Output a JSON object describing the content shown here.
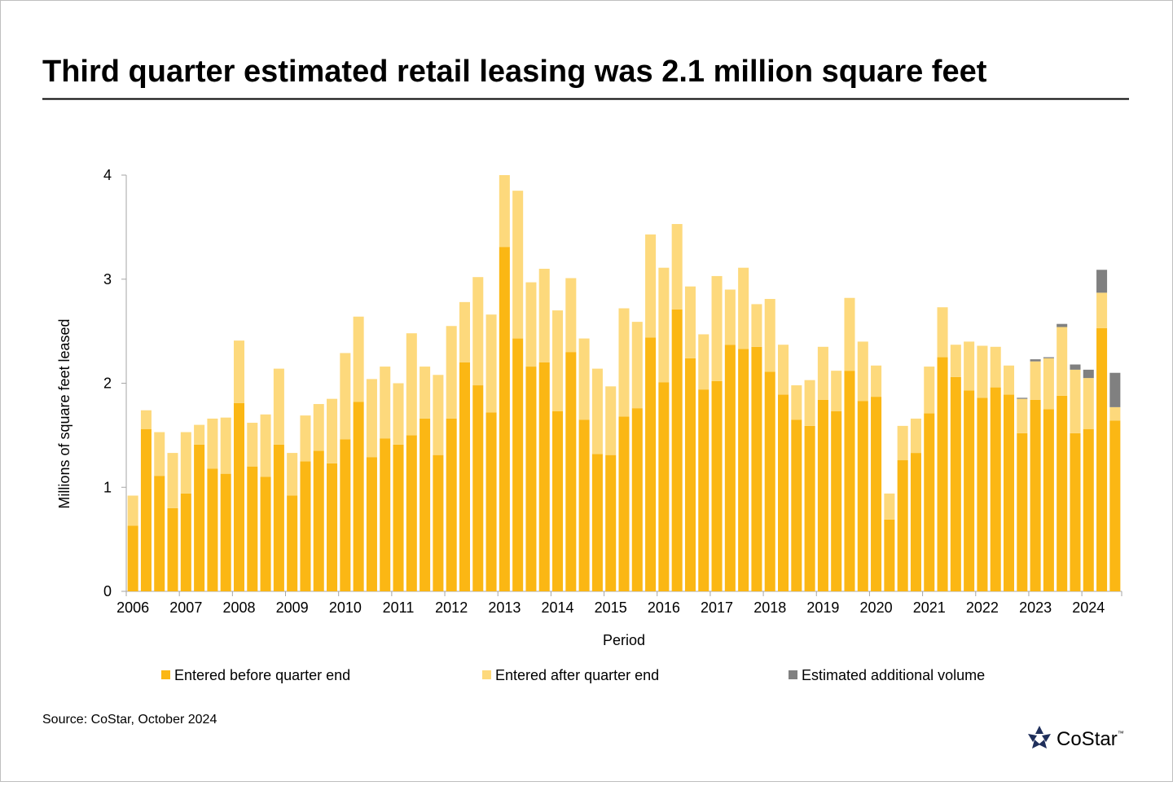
{
  "chart_data": {
    "type": "stacked-bar",
    "title": "Third quarter estimated retail leasing was 2.1 million square feet",
    "y_label": "Millions of square feet leased",
    "x_label": "Period",
    "source": "Source: CoStar, October 2024",
    "logo": "CoStar",
    "logo_mark": "™",
    "categories": [
      "2006",
      null,
      null,
      null,
      "2007",
      null,
      null,
      null,
      "2008",
      null,
      null,
      null,
      "2009",
      null,
      null,
      null,
      "2010",
      null,
      null,
      null,
      "2011",
      null,
      null,
      null,
      "2012",
      null,
      null,
      null,
      "2013",
      null,
      null,
      null,
      "2014",
      null,
      null,
      null,
      "2015",
      null,
      null,
      null,
      "2016",
      null,
      null,
      null,
      "2017",
      null,
      null,
      null,
      "2018",
      null,
      null,
      null,
      "2019",
      null,
      null,
      null,
      "2020",
      null,
      null,
      null,
      "2021",
      null,
      null,
      null,
      "2022",
      null,
      null,
      null,
      "2023",
      null,
      null,
      null,
      "2024",
      null,
      null
    ],
    "series": [
      {
        "name": "Entered before quarter end",
        "color": "#fbb714",
        "values": [
          0.63,
          1.56,
          1.11,
          0.8,
          0.94,
          1.41,
          1.18,
          1.13,
          1.81,
          1.2,
          1.1,
          1.41,
          0.92,
          1.25,
          1.35,
          1.23,
          1.46,
          1.82,
          1.29,
          1.47,
          1.41,
          1.5,
          1.66,
          1.31,
          1.66,
          2.2,
          1.98,
          1.72,
          3.31,
          2.43,
          2.16,
          2.2,
          1.73,
          2.3,
          1.65,
          1.32,
          1.31,
          1.68,
          1.76,
          2.44,
          2.01,
          2.71,
          2.24,
          1.94,
          2.02,
          2.37,
          2.33,
          2.35,
          2.11,
          1.89,
          1.65,
          1.59,
          1.84,
          1.73,
          2.12,
          1.83,
          1.87,
          0.69,
          1.26,
          1.33,
          1.71,
          2.25,
          2.06,
          1.93,
          1.86,
          1.96,
          1.89,
          1.52,
          1.84,
          1.75,
          1.88,
          1.52,
          1.56,
          2.53,
          1.64
        ]
      },
      {
        "name": "Entered after quarter end",
        "color": "#fdd97c",
        "values": [
          0.29,
          0.18,
          0.42,
          0.53,
          0.59,
          0.19,
          0.48,
          0.54,
          0.6,
          0.42,
          0.6,
          0.73,
          0.41,
          0.44,
          0.45,
          0.62,
          0.83,
          0.82,
          0.75,
          0.69,
          0.59,
          0.98,
          0.5,
          0.77,
          0.89,
          0.58,
          1.04,
          0.94,
          0.69,
          1.42,
          0.81,
          0.9,
          0.97,
          0.71,
          0.78,
          0.82,
          0.66,
          1.04,
          0.83,
          0.99,
          1.1,
          0.82,
          0.69,
          0.53,
          1.01,
          0.53,
          0.78,
          0.41,
          0.7,
          0.48,
          0.33,
          0.44,
          0.51,
          0.39,
          0.7,
          0.57,
          0.3,
          0.25,
          0.33,
          0.33,
          0.45,
          0.48,
          0.31,
          0.47,
          0.5,
          0.39,
          0.28,
          0.33,
          0.37,
          0.49,
          0.66,
          0.61,
          0.49,
          0.34,
          0.13
        ]
      },
      {
        "name": "Estimated additional volume",
        "color": "#808080",
        "values": [
          0,
          0,
          0,
          0,
          0,
          0,
          0,
          0,
          0,
          0,
          0,
          0,
          0,
          0,
          0,
          0,
          0,
          0,
          0,
          0,
          0,
          0,
          0,
          0,
          0,
          0,
          0,
          0,
          0,
          0,
          0,
          0,
          0,
          0,
          0,
          0,
          0,
          0,
          0,
          0,
          0,
          0,
          0,
          0,
          0,
          0,
          0,
          0,
          0,
          0,
          0,
          0,
          0,
          0,
          0,
          0,
          0,
          0,
          0,
          0,
          0,
          0,
          0,
          0,
          0,
          0,
          0,
          0.01,
          0.02,
          0.01,
          0.03,
          0.05,
          0.08,
          0.22,
          0.33
        ]
      }
    ],
    "ylim": [
      0,
      4
    ],
    "yticks": [
      0,
      1,
      2,
      3,
      4
    ],
    "grid": false
  }
}
